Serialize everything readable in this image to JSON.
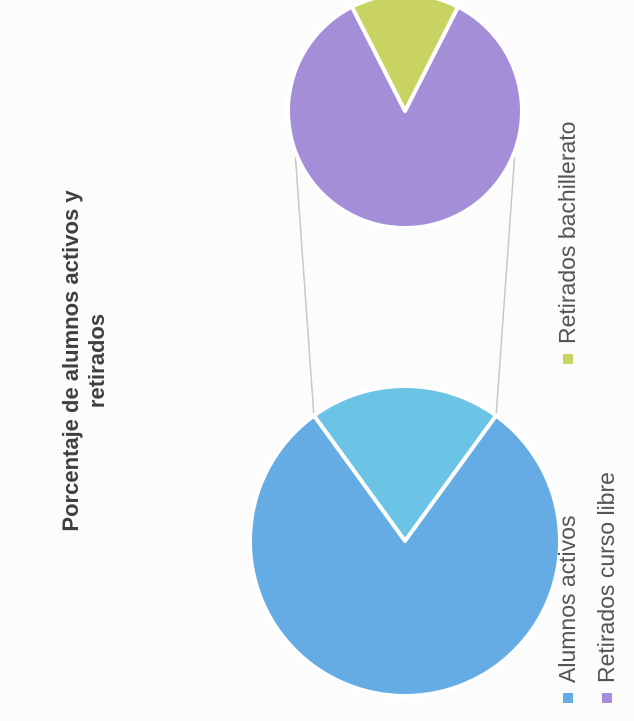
{
  "chart_data": {
    "type": "pie",
    "subtype": "pie-of-pie",
    "title_lines": [
      "Porcentaje de alumnos activos y",
      "retirados"
    ],
    "primary_pie": {
      "slices": [
        {
          "label": "Alumnos activos",
          "value": 80,
          "color": "#64ACE3"
        },
        {
          "label": "Retirados",
          "value": 20,
          "color": "#6BC3E6",
          "exploded_to_secondary": true
        }
      ]
    },
    "secondary_pie": {
      "slices": [
        {
          "label": "Retirados curso libre",
          "value": 85,
          "color": "#A58ED8"
        },
        {
          "label": "Retirados bachillerato",
          "value": 15,
          "color": "#C9D361"
        }
      ]
    },
    "legend": [
      {
        "label": "Alumnos activos",
        "color": "#64ACE3"
      },
      {
        "label": "Retirados curso libre",
        "color": "#A58ED8"
      },
      {
        "label": "Retirados bachillerato",
        "color": "#C9D361"
      }
    ],
    "legend_position": "bottom",
    "orientation": "rotated-90-ccw"
  }
}
